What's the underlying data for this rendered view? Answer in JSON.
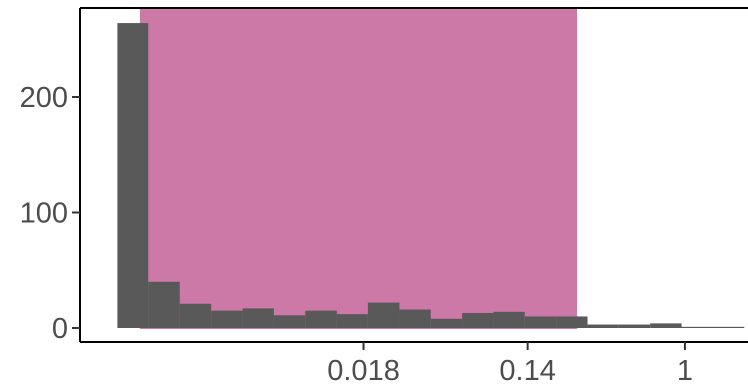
{
  "chart_data": {
    "type": "bar",
    "title": "",
    "xlabel": "",
    "ylabel": "",
    "x_scale": "log",
    "x_tick_labels": [
      "0.018",
      "0.14",
      "1"
    ],
    "x_ticks": [
      0.018,
      0.14,
      1
    ],
    "y_tick_labels": [
      "0",
      "100",
      "200"
    ],
    "y_ticks": [
      0,
      100,
      200
    ],
    "ylim": [
      0,
      275
    ],
    "xlim": [
      0.00052,
      2.2
    ],
    "grid": false,
    "legend": "none",
    "highlight_band": {
      "x_from": 0.0011,
      "x_to": 0.26,
      "color": "#cc79a7"
    },
    "bar_color": "#595959",
    "bins": [
      {
        "x_left": 0.00083,
        "x_right": 0.00122,
        "count": 264
      },
      {
        "x_left": 0.00122,
        "x_right": 0.00181,
        "count": 40
      },
      {
        "x_left": 0.00181,
        "x_right": 0.00268,
        "count": 21
      },
      {
        "x_left": 0.00268,
        "x_right": 0.00397,
        "count": 15
      },
      {
        "x_left": 0.00397,
        "x_right": 0.00587,
        "count": 17
      },
      {
        "x_left": 0.00587,
        "x_right": 0.00869,
        "count": 11
      },
      {
        "x_left": 0.00869,
        "x_right": 0.0129,
        "count": 15
      },
      {
        "x_left": 0.0129,
        "x_right": 0.019,
        "count": 12
      },
      {
        "x_left": 0.019,
        "x_right": 0.0282,
        "count": 22
      },
      {
        "x_left": 0.0282,
        "x_right": 0.0417,
        "count": 16
      },
      {
        "x_left": 0.0417,
        "x_right": 0.0617,
        "count": 8
      },
      {
        "x_left": 0.0617,
        "x_right": 0.0913,
        "count": 13
      },
      {
        "x_left": 0.0913,
        "x_right": 0.135,
        "count": 14
      },
      {
        "x_left": 0.135,
        "x_right": 0.2,
        "count": 10
      },
      {
        "x_left": 0.2,
        "x_right": 0.296,
        "count": 10
      },
      {
        "x_left": 0.296,
        "x_right": 0.438,
        "count": 3
      },
      {
        "x_left": 0.438,
        "x_right": 0.648,
        "count": 3
      },
      {
        "x_left": 0.648,
        "x_right": 0.959,
        "count": 4
      },
      {
        "x_left": 0.959,
        "x_right": 1.42,
        "count": 1
      },
      {
        "x_left": 1.42,
        "x_right": 2.1,
        "count": 1
      }
    ]
  }
}
